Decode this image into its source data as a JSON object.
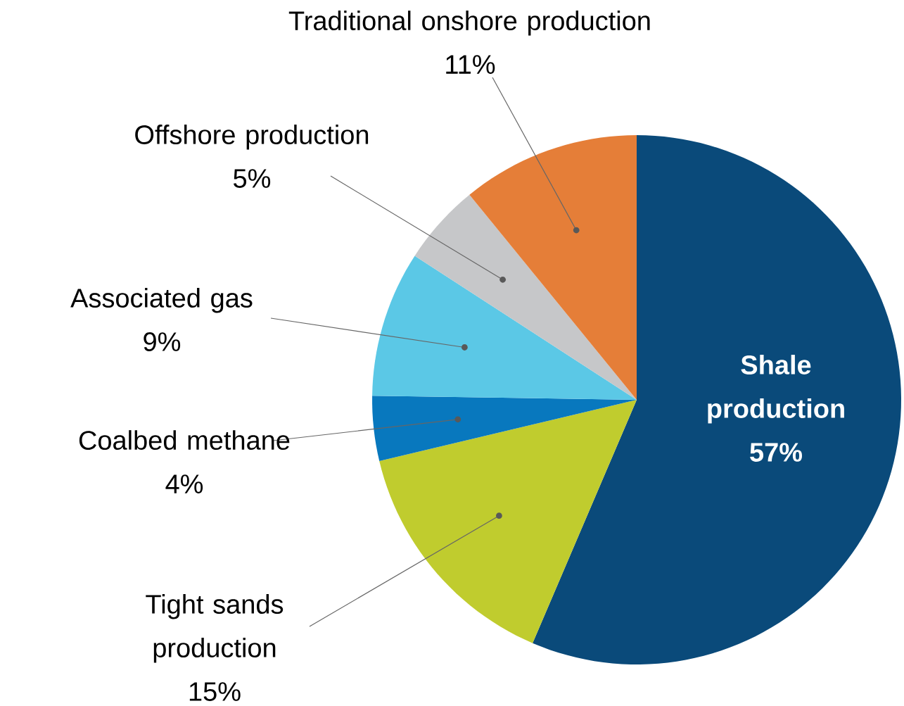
{
  "chart_data": {
    "type": "pie",
    "categories": [
      "Shale production",
      "Tight sands production",
      "Coalbed methane",
      "Associated gas",
      "Offshore production",
      "Traditional onshore production"
    ],
    "values": [
      57,
      15,
      4,
      9,
      5,
      11
    ],
    "value_labels": [
      "57%",
      "15%",
      "4%",
      "9%",
      "5%",
      "11%"
    ],
    "colors": [
      "#0a4a7a",
      "#c0cc2e",
      "#0878be",
      "#5bc8e6",
      "#c6c7c9",
      "#e57e38"
    ]
  }
}
